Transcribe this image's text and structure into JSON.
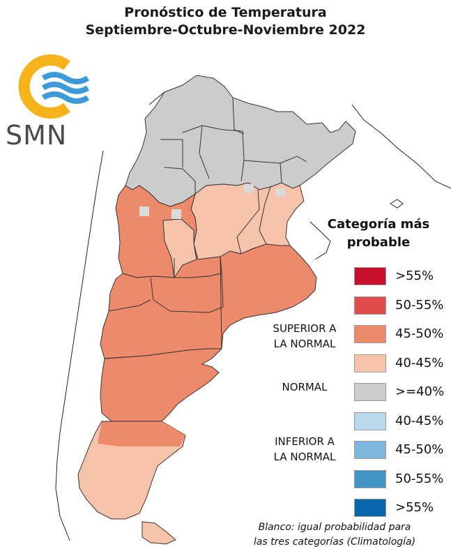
{
  "header": {
    "title_line1": "Pronóstico de Temperatura",
    "title_line2": "Septiembre-Octubre-Noviembre 2022"
  },
  "logo": {
    "text": "SMN"
  },
  "legend": {
    "title_line1": "Categoría más",
    "title_line2": "probable",
    "categories": [
      {
        "label_line1": "SUPERIOR A",
        "label_line2": "LA NORMAL"
      },
      {
        "label_line1": "NORMAL",
        "label_line2": ""
      },
      {
        "label_line1": "INFERIOR A",
        "label_line2": "LA NORMAL"
      }
    ],
    "entries": [
      {
        "label": ">55%",
        "color": "#c8102e"
      },
      {
        "label": "50-55%",
        "color": "#e04c4c"
      },
      {
        "label": "45-50%",
        "color": "#ee8a6c"
      },
      {
        "label": "40-45%",
        "color": "#f6c4ab"
      },
      {
        "label": ">=40%",
        "color": "#cccccc"
      },
      {
        "label": "40-45%",
        "color": "#b8d8ec"
      },
      {
        "label": "45-50%",
        "color": "#7fb7dc"
      },
      {
        "label": "50-55%",
        "color": "#4594c8"
      },
      {
        "label": ">55%",
        "color": "#0868ac"
      }
    ]
  },
  "footnote": {
    "line1": "Blanco: igual probabilidad para",
    "line2": "las tres categorías (Climatología)"
  }
}
